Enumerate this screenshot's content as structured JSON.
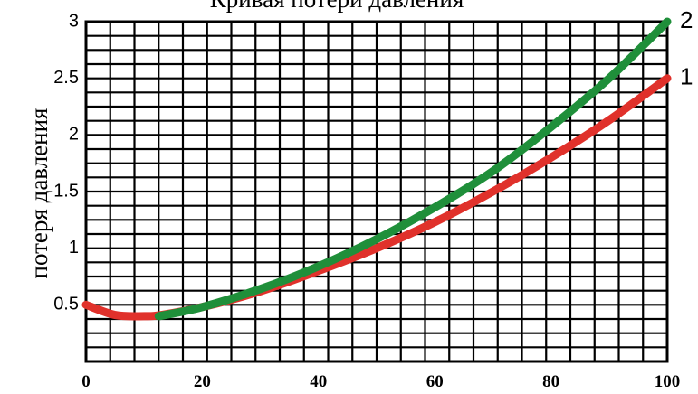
{
  "chart_data": {
    "type": "line",
    "title": "Кривая потери давления",
    "xlabel": "",
    "ylabel": "потеря давления",
    "xlim": [
      0,
      100
    ],
    "ylim": [
      0,
      3
    ],
    "xticks": [
      "0",
      "20",
      "40",
      "60",
      "80",
      "100"
    ],
    "yticks": [
      "0.5",
      "1",
      "1.5",
      "2",
      "2.5",
      "3"
    ],
    "grid": true,
    "series": [
      {
        "name": "1",
        "color": "#e0312b",
        "x": [
          0,
          5,
          10,
          13,
          20,
          30,
          40,
          50,
          60,
          70,
          80,
          90,
          100
        ],
        "y": [
          0.5,
          0.41,
          0.4,
          0.41,
          0.48,
          0.62,
          0.8,
          1.0,
          1.23,
          1.5,
          1.8,
          2.13,
          2.5
        ]
      },
      {
        "name": "2",
        "color": "#1f8f3a",
        "x": [
          12.5,
          20,
          30,
          40,
          50,
          60,
          70,
          80,
          90,
          100
        ],
        "y": [
          0.4,
          0.48,
          0.64,
          0.84,
          1.08,
          1.36,
          1.68,
          2.07,
          2.5,
          3.0
        ]
      }
    ]
  }
}
